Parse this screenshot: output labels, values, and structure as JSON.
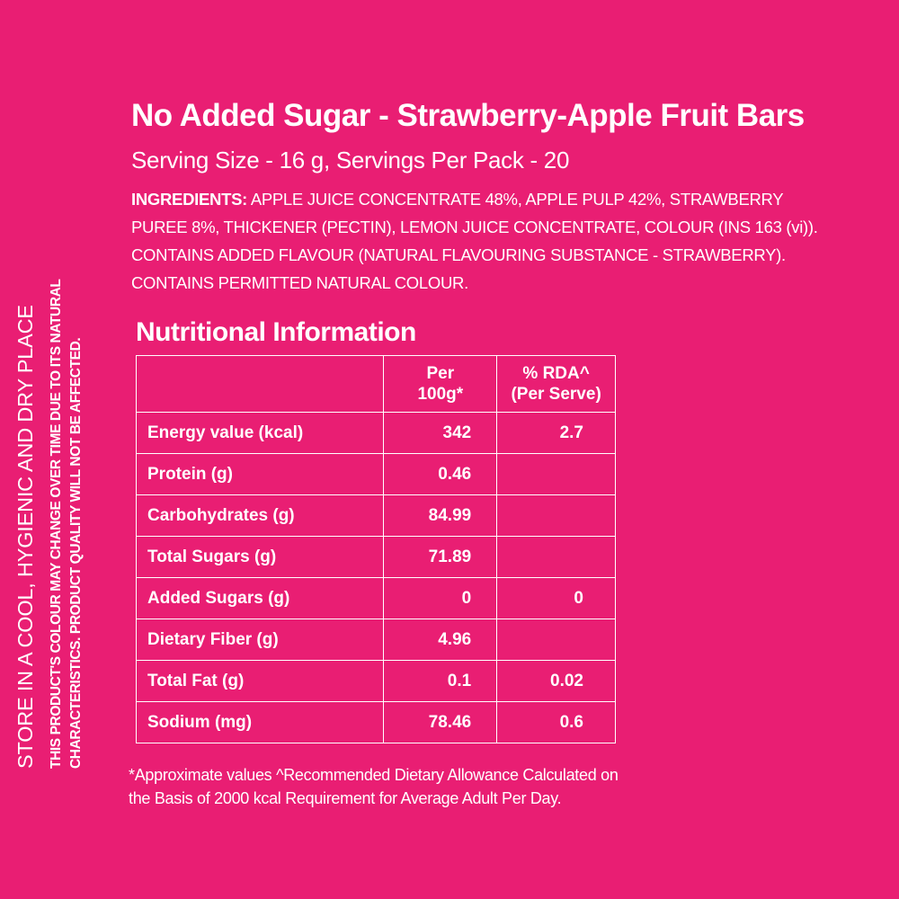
{
  "colors": {
    "background": "#e91e73",
    "text": "#ffffff"
  },
  "side": {
    "store": "STORE IN A COOL, HYGIENIC AND DRY PLACE",
    "note_line1": "THIS PRODUCT'S COLOUR MAY CHANGE OVER TIME DUE TO ITS NATURAL",
    "note_line2": "CHARACTERISTICS. PRODUCT QUALITY WILL NOT BE AFFECTED."
  },
  "title": "No Added Sugar - Strawberry-Apple Fruit Bars",
  "serving": "Serving Size  - 16 g, Servings Per Pack - 20",
  "ingredients": {
    "label": "INGREDIENTS:",
    "line1": " APPLE JUICE CONCENTRATE 48%, APPLE PULP 42%, STRAWBERRY",
    "line2": "PUREE 8%, THICKENER (PECTIN), LEMON JUICE CONCENTRATE, COLOUR (INS 163 (vi)).",
    "line3": "CONTAINS ADDED FLAVOUR (NATURAL FLAVOURING SUBSTANCE - STRAWBERRY).",
    "line4": "CONTAINS PERMITTED NATURAL COLOUR."
  },
  "nutrition": {
    "heading": "Nutritional Information",
    "header": {
      "col1": "",
      "per_line1": "Per",
      "per_line2": "100g*",
      "rda_line1": "% RDA^",
      "rda_line2": "(Per Serve)"
    },
    "rows": [
      {
        "name": "Energy value (kcal)",
        "per100": "342",
        "rda": "2.7"
      },
      {
        "name": "Protein (g)",
        "per100": "0.46",
        "rda": ""
      },
      {
        "name": "Carbohydrates (g)",
        "per100": "84.99",
        "rda": ""
      },
      {
        "name": "Total Sugars (g)",
        "per100": "71.89",
        "rda": ""
      },
      {
        "name": "Added Sugars (g)",
        "per100": "0",
        "rda": "0"
      },
      {
        "name": "Dietary Fiber (g)",
        "per100": "4.96",
        "rda": ""
      },
      {
        "name": "Total Fat (g)",
        "per100": "0.1",
        "rda": "0.02"
      },
      {
        "name": "Sodium (mg)",
        "per100": "78.46",
        "rda": "0.6"
      }
    ]
  },
  "footnote": {
    "line1": "*Approximate values ^Recommended Dietary Allowance Calculated on",
    "line2": "the Basis of 2000 kcal Requirement for Average Adult Per Day."
  }
}
